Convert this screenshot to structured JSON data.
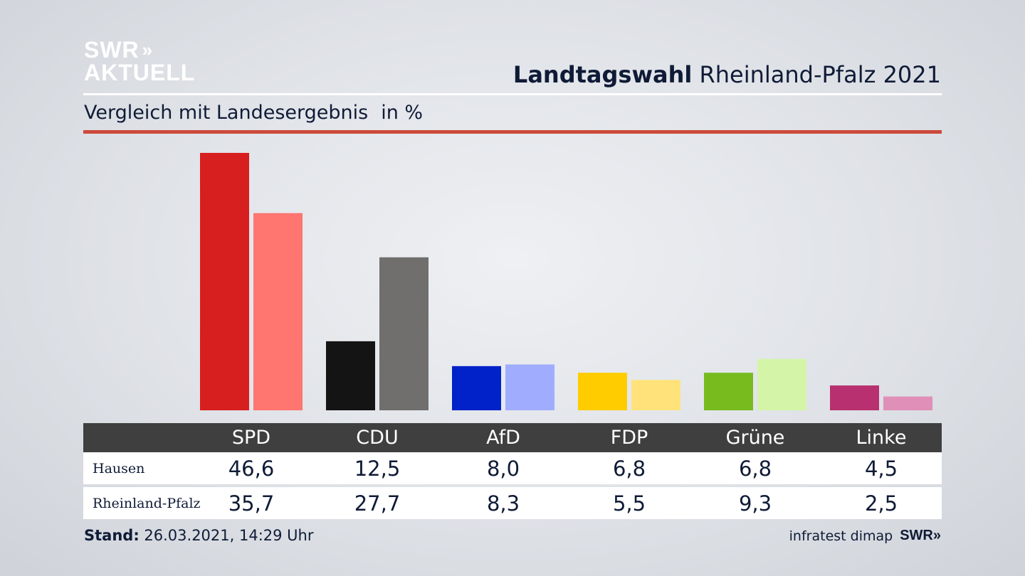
{
  "header": {
    "logo_line1": "SWR",
    "logo_chevrons": "»",
    "logo_line2": "AKTUELL",
    "title_bold": "Landtagswahl",
    "title_rest": " Rheinland-Pfalz 2021",
    "subtitle": "Vergleich mit Landesergebnis",
    "unit": "in %"
  },
  "chart_data": {
    "type": "bar",
    "categories": [
      "SPD",
      "CDU",
      "AfD",
      "FDP",
      "Grüne",
      "Linke"
    ],
    "series": [
      {
        "name": "Hausen",
        "values": [
          46.6,
          12.5,
          8.0,
          6.8,
          6.8,
          4.5
        ],
        "colors": [
          "#d81f1f",
          "#141414",
          "#0022c8",
          "#ffcc00",
          "#77bb1e",
          "#b8306f"
        ]
      },
      {
        "name": "Rheinland-Pfalz",
        "values": [
          35.7,
          27.7,
          8.3,
          5.5,
          9.3,
          2.5
        ],
        "colors": [
          "#ff7570",
          "#706f6d",
          "#a0adff",
          "#ffe27a",
          "#d4f5a8",
          "#e08fb8"
        ]
      }
    ],
    "ylim": [
      0,
      46.6
    ],
    "grid": false,
    "legend": "table-below"
  },
  "table": {
    "rows": [
      {
        "label": "Hausen",
        "values": [
          "46,6",
          "12,5",
          "8,0",
          "6,8",
          "6,8",
          "4,5"
        ]
      },
      {
        "label": "Rheinland-Pfalz",
        "values": [
          "35,7",
          "27,7",
          "8,3",
          "5,5",
          "9,3",
          "2,5"
        ]
      }
    ]
  },
  "footer": {
    "stand_label": "Stand:",
    "stand_value": " 26.03.2021, 14:29 Uhr",
    "source": "infratest dimap",
    "brand": "SWR»"
  }
}
